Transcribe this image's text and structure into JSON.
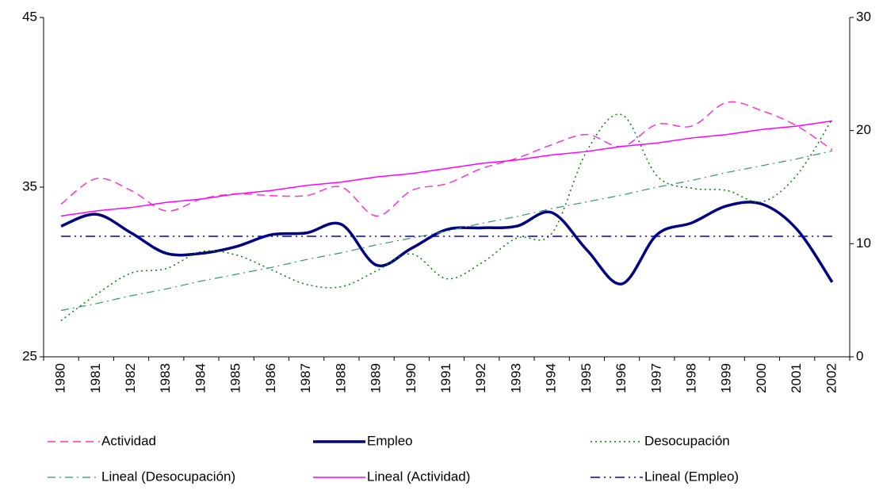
{
  "chart_data": {
    "type": "line",
    "categories": [
      "1980",
      "1981",
      "1982",
      "1983",
      "1984",
      "1985",
      "1986",
      "1987",
      "1988",
      "1989",
      "1990",
      "1991",
      "1992",
      "1993",
      "1994",
      "1995",
      "1996",
      "1997",
      "1998",
      "1999",
      "2000",
      "2001",
      "2002"
    ],
    "ylim": [
      25,
      45
    ],
    "yticks": [
      25,
      35,
      45
    ],
    "y2lim": [
      0,
      30
    ],
    "y2ticks": [
      0,
      10,
      20,
      30
    ],
    "series": [
      {
        "name": "Actividad",
        "color": "#ff33cc",
        "style": "dashed",
        "smooth": true,
        "values": [
          34.0,
          35.5,
          34.8,
          33.6,
          34.3,
          34.6,
          34.5,
          34.5,
          35.0,
          33.3,
          34.8,
          35.2,
          36.1,
          36.7,
          37.5,
          38.1,
          37.4,
          38.7,
          38.6,
          40.0,
          39.5,
          38.6,
          37.2
        ]
      },
      {
        "name": "Empleo",
        "color": "#000080",
        "style": "solid-thick",
        "smooth": true,
        "values": [
          32.7,
          33.4,
          32.3,
          31.1,
          31.1,
          31.5,
          32.2,
          32.3,
          32.8,
          30.4,
          31.4,
          32.5,
          32.6,
          32.7,
          33.5,
          31.3,
          29.3,
          32.2,
          32.9,
          33.9,
          34.0,
          32.5,
          29.4
        ]
      },
      {
        "name": "Desocupación",
        "color": "#008000",
        "style": "dotted",
        "smooth": true,
        "axis": "y2",
        "values": [
          3.2,
          5.5,
          7.4,
          7.8,
          9.3,
          9.0,
          7.7,
          6.4,
          6.2,
          7.6,
          9.1,
          6.9,
          8.3,
          10.5,
          10.9,
          18.2,
          21.4,
          16.0,
          14.9,
          14.7,
          13.7,
          16.1,
          21.0
        ]
      },
      {
        "name": "Lineal (Desocupación)",
        "color": "#339966",
        "style": "dashdot",
        "smooth": false,
        "axis": "y2",
        "values": [
          4.1,
          4.7,
          5.4,
          6.0,
          6.7,
          7.3,
          7.9,
          8.6,
          9.2,
          9.9,
          10.5,
          11.1,
          11.8,
          12.4,
          13.1,
          13.7,
          14.3,
          15.0,
          15.6,
          16.3,
          16.9,
          17.5,
          18.2
        ]
      },
      {
        "name": "Lineal (Actividad)",
        "color": "#ff00ff",
        "style": "solid",
        "smooth": false,
        "values": [
          33.3,
          33.6,
          33.8,
          34.1,
          34.3,
          34.6,
          34.8,
          35.1,
          35.3,
          35.6,
          35.8,
          36.1,
          36.4,
          36.6,
          36.9,
          37.1,
          37.4,
          37.6,
          37.9,
          38.1,
          38.4,
          38.6,
          38.9
        ]
      },
      {
        "name": "Lineal (Empleo)",
        "color": "#0000cc",
        "style": "dashdotdot",
        "smooth": false,
        "values": [
          32.1,
          32.1,
          32.1,
          32.1,
          32.1,
          32.1,
          32.1,
          32.1,
          32.1,
          32.1,
          32.1,
          32.1,
          32.1,
          32.1,
          32.1,
          32.1,
          32.1,
          32.1,
          32.1,
          32.1,
          32.1,
          32.1,
          32.1
        ]
      }
    ],
    "legend": "bottom"
  }
}
